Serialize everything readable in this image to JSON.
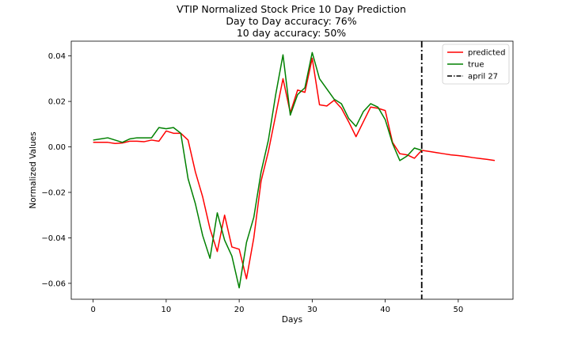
{
  "chart_data": {
    "type": "line",
    "title_lines": [
      "VTIP Normalized Stock Price 10 Day Prediction",
      "Day to Day accuracy: 76%",
      "10 day accuracy: 50%"
    ],
    "xlabel": "Days",
    "ylabel": "Normalized Values",
    "xlim": [
      -3,
      57.5
    ],
    "ylim": [
      -0.067,
      0.0465
    ],
    "x_ticks": [
      0,
      10,
      20,
      30,
      40,
      50
    ],
    "x_tick_labels": [
      "0",
      "10",
      "20",
      "30",
      "40",
      "50"
    ],
    "y_ticks": [
      -0.06,
      -0.04,
      -0.02,
      0.0,
      0.02,
      0.04
    ],
    "y_tick_labels": [
      "−0.06",
      "−0.04",
      "−0.02",
      "0.00",
      "0.02",
      "0.04"
    ],
    "grid": false,
    "legend_position": "top-right",
    "series": [
      {
        "name": "predicted",
        "color": "#ff0000",
        "x": [
          0,
          1,
          2,
          3,
          4,
          5,
          6,
          7,
          8,
          9,
          10,
          11,
          12,
          13,
          14,
          15,
          16,
          17,
          18,
          19,
          20,
          21,
          22,
          23,
          24,
          25,
          26,
          27,
          28,
          29,
          30,
          31,
          32,
          33,
          34,
          35,
          36,
          37,
          38,
          39,
          40,
          41,
          42,
          43,
          44,
          45,
          46,
          47,
          48,
          49,
          50,
          51,
          52,
          53,
          54,
          55
        ],
        "values": [
          0.002,
          0.002,
          0.002,
          0.0015,
          0.0017,
          0.0025,
          0.0025,
          0.0023,
          0.003,
          0.0025,
          0.007,
          0.006,
          0.006,
          0.003,
          -0.011,
          -0.022,
          -0.036,
          -0.046,
          -0.03,
          -0.044,
          -0.045,
          -0.058,
          -0.04,
          -0.015,
          -0.002,
          0.014,
          0.03,
          0.015,
          0.025,
          0.024,
          0.039,
          0.0185,
          0.018,
          0.0205,
          0.017,
          0.011,
          0.0045,
          0.011,
          0.0175,
          0.017,
          0.016,
          0.002,
          -0.003,
          -0.0035,
          -0.005,
          -0.0015,
          -0.002,
          -0.0025,
          -0.003,
          -0.0035,
          -0.0038,
          -0.0042,
          -0.0047,
          -0.0051,
          -0.0055,
          -0.006
        ]
      },
      {
        "name": "true",
        "color": "#008000",
        "x": [
          0,
          1,
          2,
          3,
          4,
          5,
          6,
          7,
          8,
          9,
          10,
          11,
          12,
          13,
          14,
          15,
          16,
          17,
          18,
          19,
          20,
          21,
          22,
          23,
          24,
          25,
          26,
          27,
          28,
          29,
          30,
          31,
          32,
          33,
          34,
          35,
          36,
          37,
          38,
          39,
          40,
          41,
          42,
          43,
          44,
          45
        ],
        "values": [
          0.003,
          0.0035,
          0.004,
          0.003,
          0.002,
          0.0035,
          0.004,
          0.004,
          0.004,
          0.0085,
          0.008,
          0.0085,
          0.006,
          -0.014,
          -0.025,
          -0.039,
          -0.049,
          -0.029,
          -0.041,
          -0.048,
          -0.062,
          -0.042,
          -0.031,
          -0.011,
          0.003,
          0.023,
          0.0405,
          0.014,
          0.023,
          0.026,
          0.0415,
          0.03,
          0.0255,
          0.021,
          0.019,
          0.0125,
          0.009,
          0.0155,
          0.019,
          0.0175,
          0.012,
          0.0015,
          -0.006,
          -0.004,
          -0.0005,
          -0.0015
        ]
      }
    ],
    "vertical_line": {
      "name": "april 27",
      "x": 45,
      "color": "#000000"
    }
  }
}
